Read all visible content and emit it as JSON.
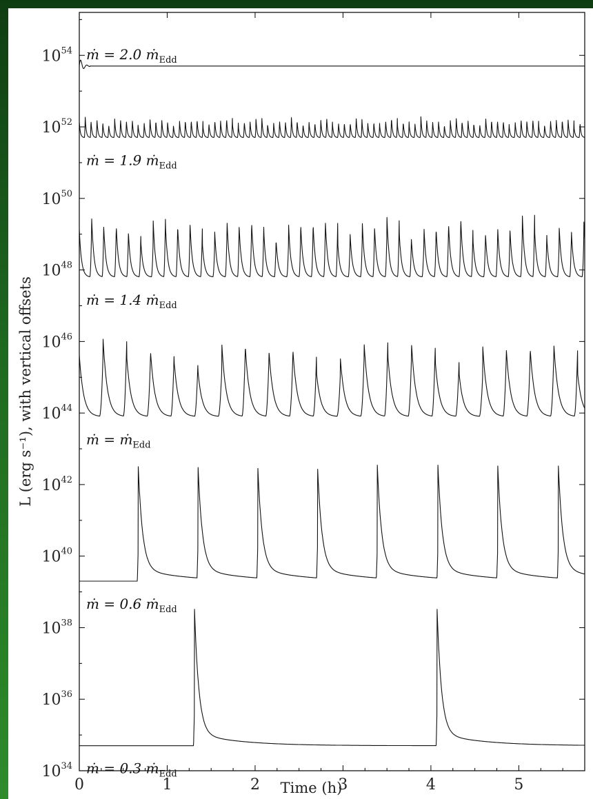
{
  "chart_data": {
    "type": "line",
    "xlabel": "Time (h)",
    "ylabel": "L (erg s⁻¹), with vertical offsets",
    "xlim": [
      0,
      5.75
    ],
    "x_ticks": [
      "0",
      "1",
      "2",
      "3",
      "4",
      "5"
    ],
    "ylim_log10": [
      34,
      55.2
    ],
    "y_ticks": [
      {
        "base": "10",
        "exp": "34"
      },
      {
        "base": "10",
        "exp": "36"
      },
      {
        "base": "10",
        "exp": "38"
      },
      {
        "base": "10",
        "exp": "40"
      },
      {
        "base": "10",
        "exp": "42"
      },
      {
        "base": "10",
        "exp": "44"
      },
      {
        "base": "10",
        "exp": "46"
      },
      {
        "base": "10",
        "exp": "48"
      },
      {
        "base": "10",
        "exp": "50"
      },
      {
        "base": "10",
        "exp": "52"
      },
      {
        "base": "10",
        "exp": "54"
      }
    ],
    "grid": false,
    "series": [
      {
        "name": "ṁ = 2.0 ṁEdd",
        "label_main": "ṁ = 2.0 ṁ",
        "label_sub": "Edd",
        "baseline_log10": 53.7,
        "peak_log10": 53.7,
        "behaviour": "steady after brief initial oscillation"
      },
      {
        "name": "ṁ = 1.9 ṁEdd",
        "label_main": "ṁ = 1.9 ṁ",
        "label_sub": "Edd",
        "baseline_log10": 51.7,
        "peak_log10": 52.3,
        "flare_period_h": 0.067
      },
      {
        "name": "ṁ = 1.4 ṁEdd",
        "label_main": "ṁ = 1.4 ṁ",
        "label_sub": "Edd",
        "baseline_log10": 47.8,
        "peak_log10": 49.6,
        "flare_period_h": 0.14
      },
      {
        "name": "ṁ = ṁEdd",
        "label_main": "ṁ = ṁ",
        "label_sub": "Edd",
        "baseline_log10": 43.9,
        "peak_log10": 46.2,
        "flare_period_h": 0.27
      },
      {
        "name": "ṁ = 0.6 ṁEdd",
        "label_main": "ṁ = 0.6 ṁ",
        "label_sub": "Edd",
        "baseline_log10": 39.3,
        "peak_log10": 42.2,
        "flare_times_h": [
          0.67,
          1.35,
          2.03,
          2.71,
          3.39,
          4.08,
          4.76,
          5.45
        ]
      },
      {
        "name": "ṁ = 0.3 ṁEdd",
        "label_main": "ṁ = 0.3 ṁ",
        "label_sub": "Edd",
        "baseline_log10": 34.7,
        "peak_log10": 38.2,
        "flare_times_h": [
          1.31,
          4.07
        ]
      }
    ]
  }
}
